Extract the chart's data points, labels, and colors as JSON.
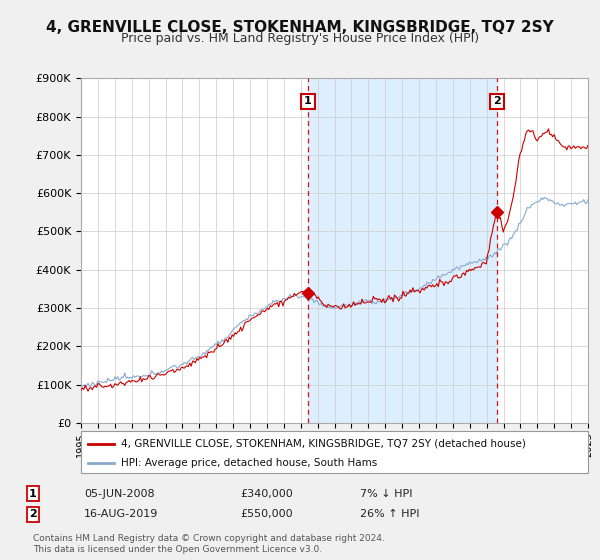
{
  "title": "4, GRENVILLE CLOSE, STOKENHAM, KINGSBRIDGE, TQ7 2SY",
  "subtitle": "Price paid vs. HM Land Registry's House Price Index (HPI)",
  "legend_label_red": "4, GRENVILLE CLOSE, STOKENHAM, KINGSBRIDGE, TQ7 2SY (detached house)",
  "legend_label_blue": "HPI: Average price, detached house, South Hams",
  "footer1": "Contains HM Land Registry data © Crown copyright and database right 2024.",
  "footer2": "This data is licensed under the Open Government Licence v3.0.",
  "annotation1_date": "05-JUN-2008",
  "annotation1_price": "£340,000",
  "annotation1_hpi": "7% ↓ HPI",
  "annotation2_date": "16-AUG-2019",
  "annotation2_price": "£550,000",
  "annotation2_hpi": "26% ↑ HPI",
  "sale1_x": 2008.43,
  "sale1_y": 340000,
  "sale2_x": 2019.62,
  "sale2_y": 550000,
  "vline1_x": 2008.43,
  "vline2_x": 2019.62,
  "ylim": [
    0,
    900000
  ],
  "xlim_start": 1995,
  "xlim_end": 2025,
  "background_color": "#f0f0f0",
  "plot_bg_color": "#ffffff",
  "shade_color": "#ddeeff",
  "red_color": "#cc0000",
  "blue_color": "#88aacc",
  "vline_color": "#cc0000",
  "title_fontsize": 11,
  "subtitle_fontsize": 9,
  "ytick_labels": [
    "£0",
    "£100K",
    "£200K",
    "£300K",
    "£400K",
    "£500K",
    "£600K",
    "£700K",
    "£800K",
    "£900K"
  ],
  "ytick_values": [
    0,
    100000,
    200000,
    300000,
    400000,
    500000,
    600000,
    700000,
    800000,
    900000
  ]
}
